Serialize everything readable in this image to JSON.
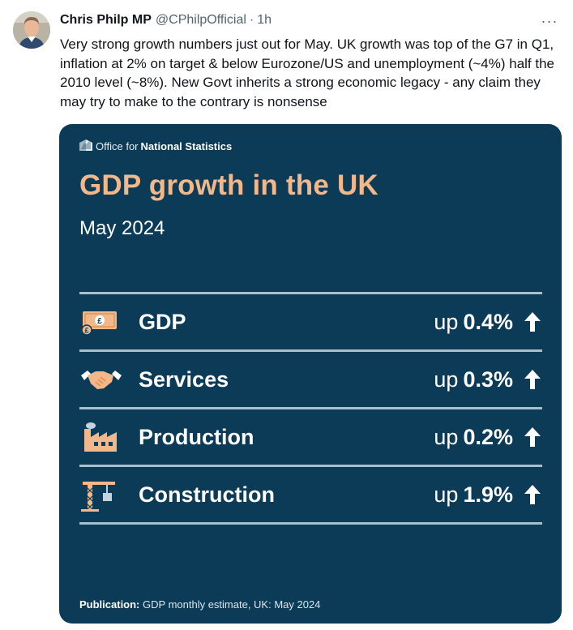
{
  "tweet": {
    "author_name": "Chris Philp MP",
    "handle": "@CPhilpOfficial",
    "separator": "·",
    "time": "1h",
    "more_label": "···",
    "text": "Very strong growth numbers just out for May. UK growth was top of the G7 in Q1, inflation at 2% on target & below Eurozone/US and unemployment (~4%) half the 2010 level (~8%). New Govt inherits a strong economic legacy - any claim they may try to make to the contrary is nonsense"
  },
  "card": {
    "source_prefix": "Office for",
    "source_name": "National Statistics",
    "title": "GDP growth in the UK",
    "subtitle": "May 2024",
    "rows": [
      {
        "label": "GDP",
        "direction": "up",
        "value": "0.4%",
        "icon": "banknote-icon"
      },
      {
        "label": "Services",
        "direction": "up",
        "value": "0.3%",
        "icon": "handshake-icon"
      },
      {
        "label": "Production",
        "direction": "up",
        "value": "0.2%",
        "icon": "factory-icon"
      },
      {
        "label": "Construction",
        "direction": "up",
        "value": "1.9%",
        "icon": "crane-icon"
      }
    ],
    "publication_label": "Publication:",
    "publication_value": "GDP monthly estimate, UK: May 2024"
  },
  "colors": {
    "card_bg": "#0c3b57",
    "title_accent": "#f3b889",
    "icon_accent": "#f3b889",
    "rule": "#a8bfcd"
  }
}
